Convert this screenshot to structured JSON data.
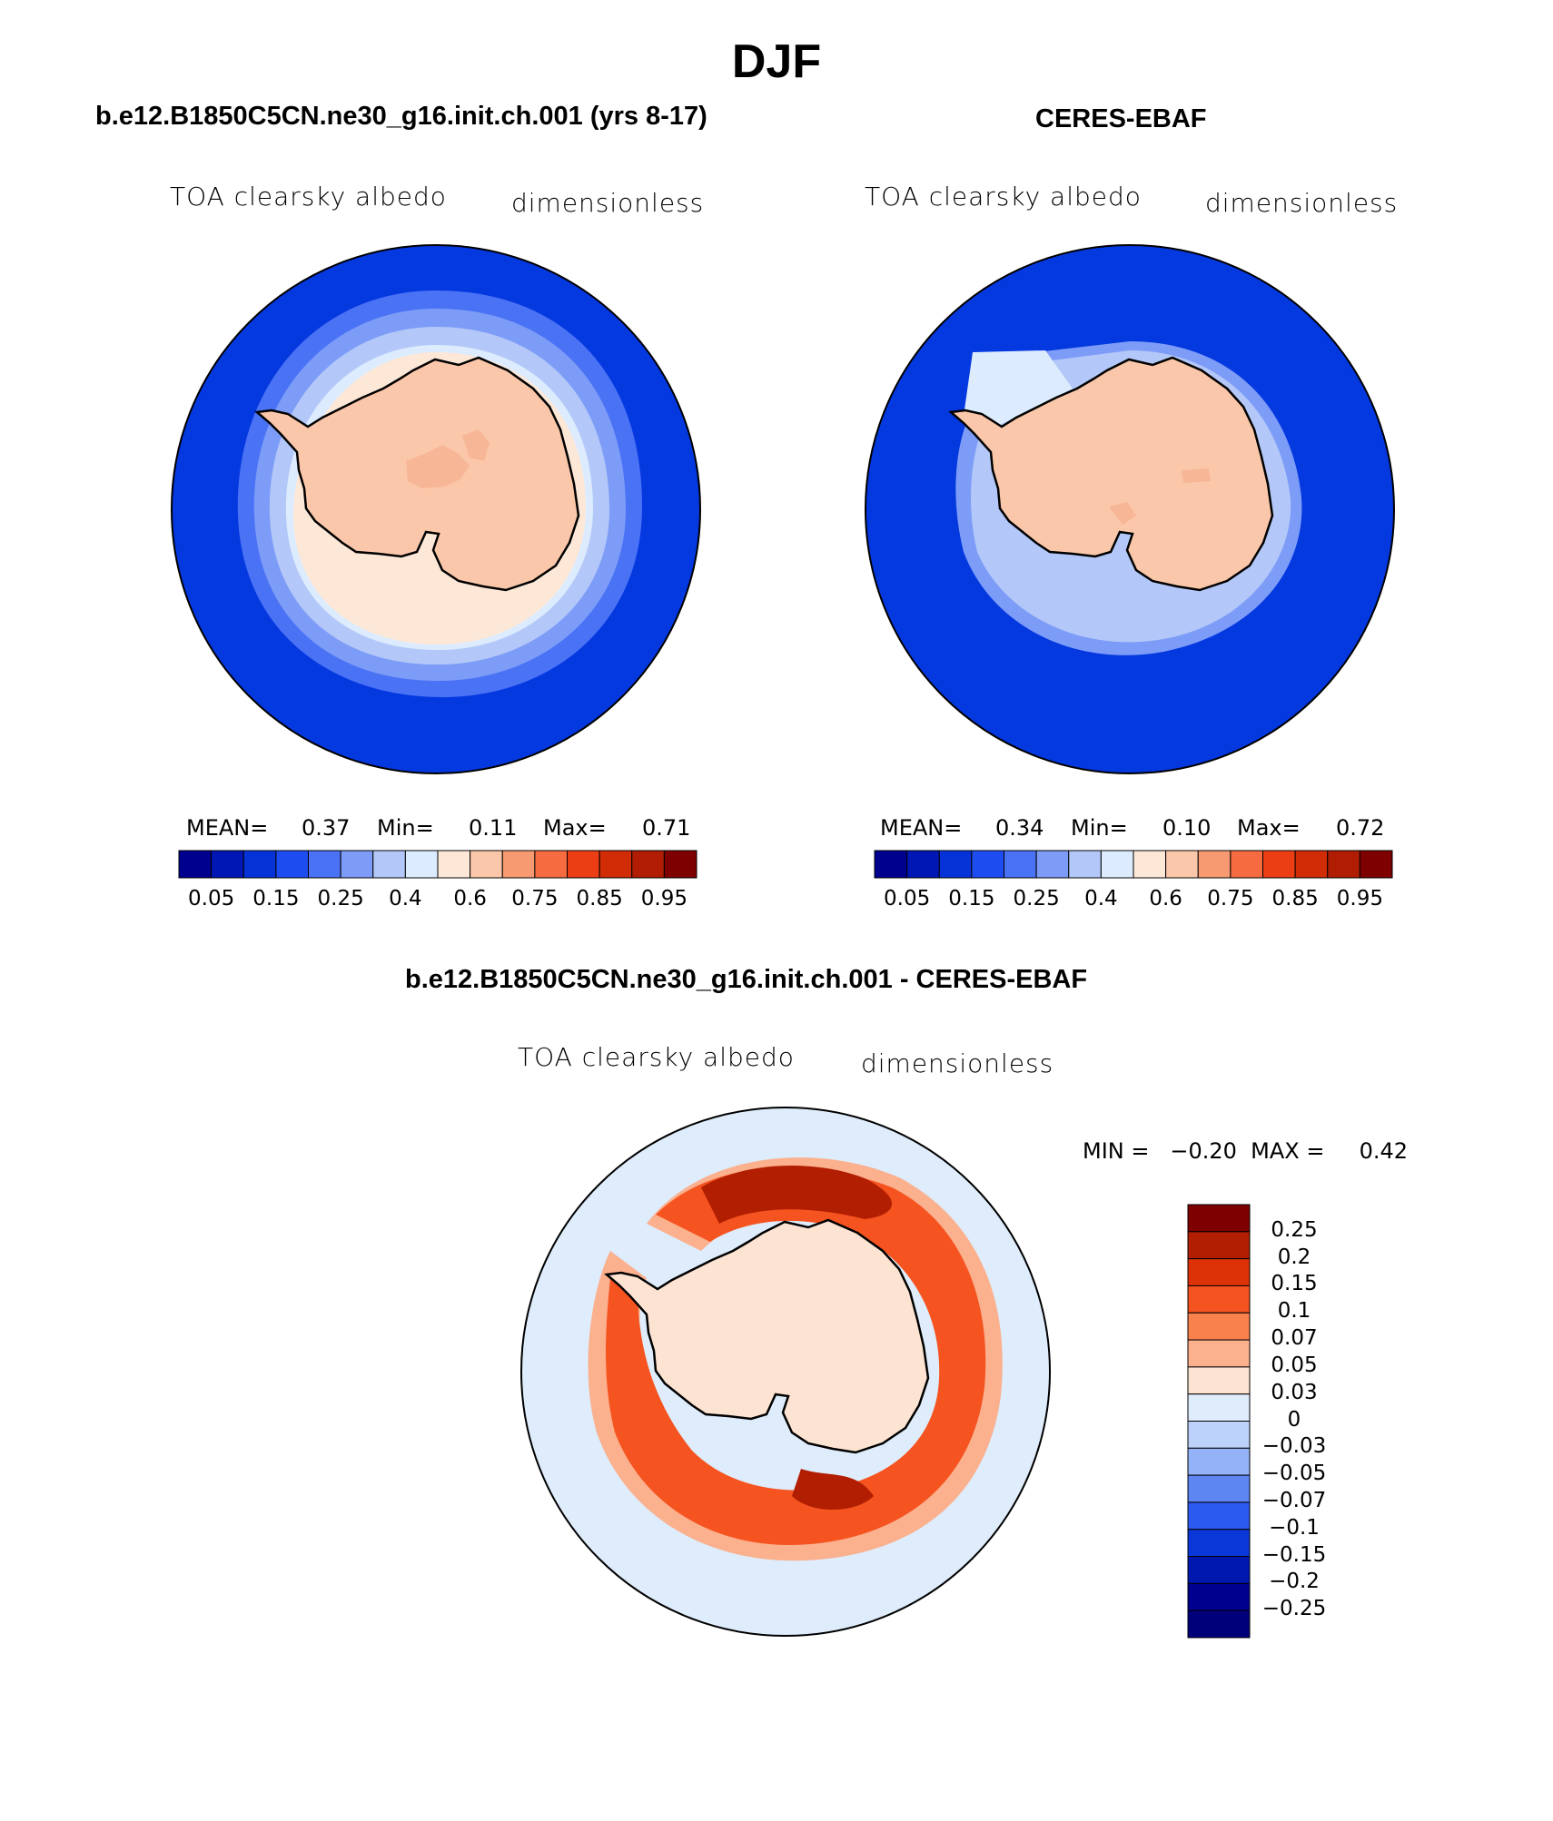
{
  "title": "DJF",
  "panels": [
    {
      "heading": "b.e12.B1850C5CN.ne30_g16.init.ch.001 (yrs 8-17)",
      "variable": "TOA clearsky albedo",
      "units": "dimensionless",
      "stats": {
        "mean_label": "MEAN=",
        "mean": "0.37",
        "min_label": "Min=",
        "min": "0.11",
        "max_label": "Max=",
        "max": "0.71"
      }
    },
    {
      "heading": "CERES-EBAF",
      "variable": "TOA clearsky albedo",
      "units": "dimensionless",
      "stats": {
        "mean_label": "MEAN=",
        "mean": "0.34",
        "min_label": "Min=",
        "min": "0.10",
        "max_label": "Max=",
        "max": "0.72"
      }
    },
    {
      "heading": "b.e12.B1850C5CN.ne30_g16.init.ch.001 - CERES-EBAF",
      "variable": "TOA clearsky albedo",
      "units": "dimensionless",
      "minmax_text": "MIN =   −0.20  MAX =     0.42"
    }
  ],
  "colorbar_field": {
    "colors": [
      "#00008f",
      "#0017b5",
      "#0533d8",
      "#1d4df0",
      "#4a72f5",
      "#7d9cf7",
      "#b3c8f8",
      "#dcebfd",
      "#fde8d8",
      "#fbc7aa",
      "#f79a72",
      "#f66c40",
      "#ec3e14",
      "#d22c06",
      "#b01d02",
      "#7f0000"
    ],
    "labels": [
      "0.05",
      "0.15",
      "0.25",
      "0.4",
      "0.6",
      "0.75",
      "0.85",
      "0.95"
    ]
  },
  "colorbar_diff": {
    "colors": [
      "#7f0000",
      "#b21e02",
      "#dd3208",
      "#f5531f",
      "#f8814e",
      "#fbb08e",
      "#fde3d1",
      "#deecfb",
      "#bcd2fa",
      "#93b2f7",
      "#5d86f3",
      "#2a5af0",
      "#0a38d8",
      "#0018b0",
      "#00008e"
    ],
    "labels": [
      "0.25",
      "0.2",
      "0.15",
      "0.1",
      "0.07",
      "0.05",
      "0.03",
      "0",
      "−0.03",
      "−0.05",
      "−0.07",
      "−0.1",
      "−0.15",
      "−0.2",
      "−0.25"
    ]
  },
  "map_colors": {
    "ocean_model": "#0539e0",
    "ocean_obs": "#0539e0",
    "ice_ring_1": "#4a72f5",
    "ice_ring_2": "#7d9cf7",
    "ice_ring_3": "#b3c8f8",
    "ice_ring_4": "#dcebfd",
    "ice_ring_5": "#fde8d8",
    "continent": "#fbc7aa",
    "continent_high": "#f7b695",
    "diff_background": "#deecfb",
    "diff_ring_light": "#fbb08e",
    "diff_ring_mid": "#f5531f",
    "diff_ring_dark": "#b21e02",
    "diff_continent": "#fde3d1"
  }
}
